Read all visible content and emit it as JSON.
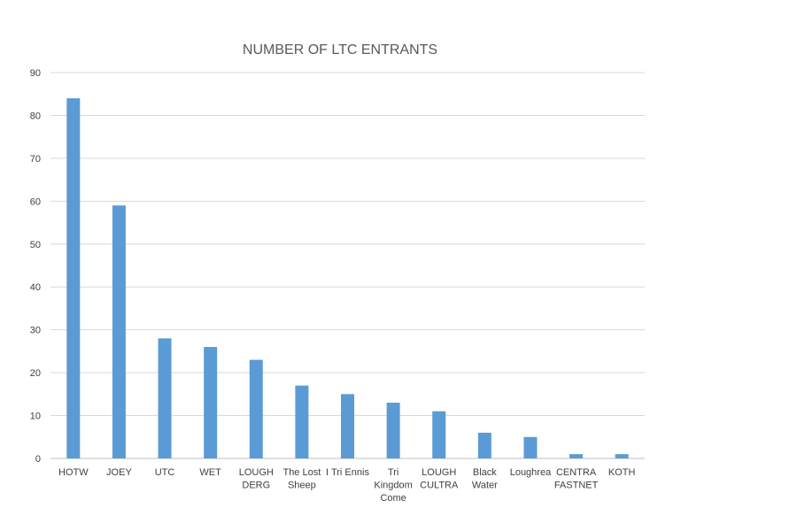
{
  "chart_data": {
    "type": "bar",
    "title": "NUMBER OF LTC ENTRANTS",
    "xlabel": "",
    "ylabel": "",
    "categories": [
      "HOTW",
      "JOEY",
      "UTC",
      "WET",
      "LOUGH DERG",
      "The Lost Sheep",
      "I Tri Ennis",
      "Tri Kingdom Come",
      "LOUGH CULTRA",
      "Black Water",
      "Loughrea",
      "CENTRA FASTNET",
      "KOTH"
    ],
    "category_label_lines": [
      [
        "HOTW"
      ],
      [
        "JOEY"
      ],
      [
        "UTC"
      ],
      [
        "WET"
      ],
      [
        "LOUGH",
        "DERG"
      ],
      [
        "The Lost",
        "Sheep"
      ],
      [
        "I Tri Ennis"
      ],
      [
        "Tri",
        "Kingdom",
        "Come"
      ],
      [
        "LOUGH",
        "CULTRA"
      ],
      [
        "Black",
        "Water"
      ],
      [
        "Loughrea"
      ],
      [
        "CENTRA",
        "FASTNET"
      ],
      [
        "KOTH"
      ]
    ],
    "values": [
      84,
      59,
      28,
      26,
      23,
      17,
      15,
      13,
      11,
      6,
      5,
      1,
      1
    ],
    "ylim": [
      0,
      90
    ],
    "yticks": [
      0,
      10,
      20,
      30,
      40,
      50,
      60,
      70,
      80,
      90
    ],
    "grid": true,
    "legend": "none",
    "colors": {
      "bar": "#5b9bd5",
      "grid": "#d9d9d9",
      "axis": "#bfbfbf",
      "title": "#595959",
      "text": "#404040"
    }
  }
}
